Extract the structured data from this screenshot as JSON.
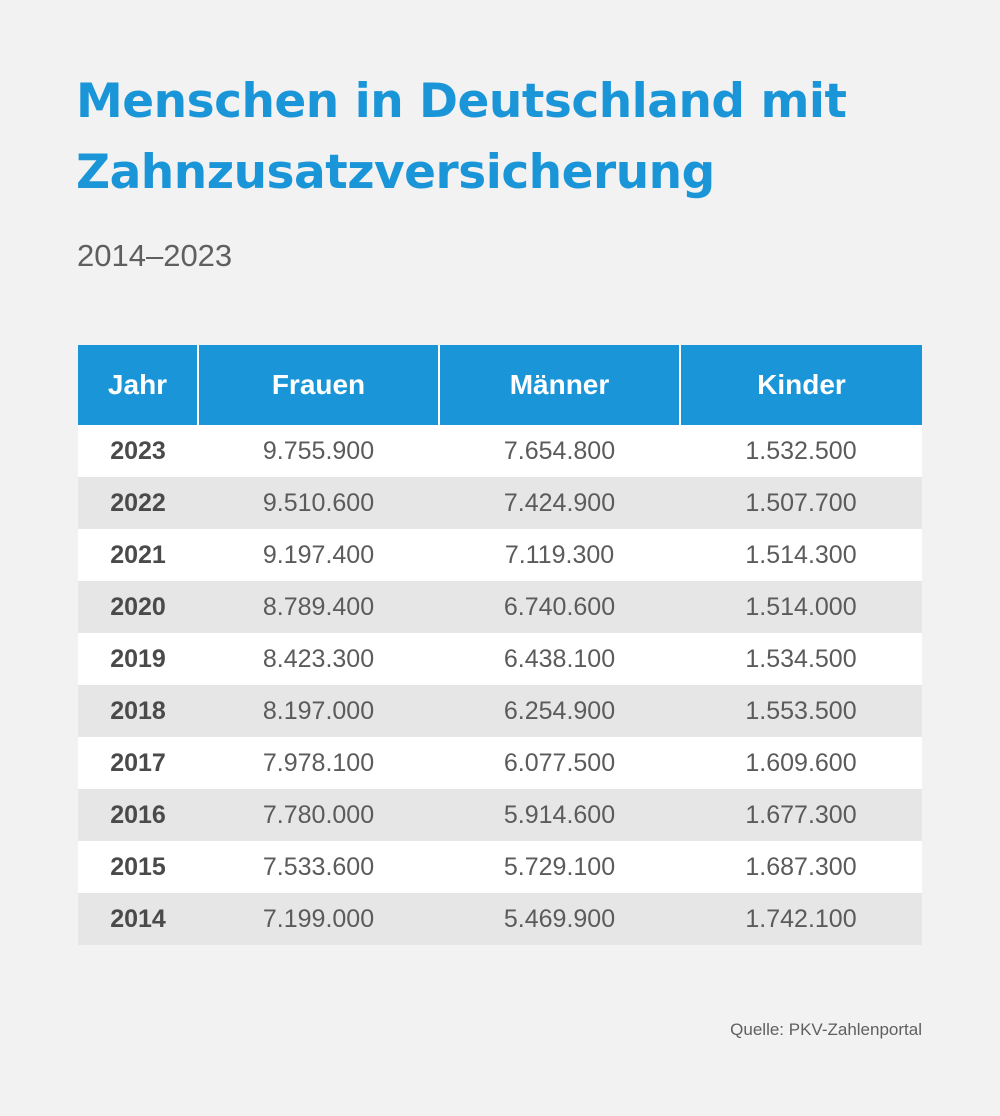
{
  "header": {
    "title_line1": "Menschen in Deutschland mit",
    "title_line2": "Zahnzusatzversicherung",
    "subtitle": "2014–2023"
  },
  "table": {
    "columns": [
      "Jahr",
      "Frauen",
      "Männer",
      "Kinder"
    ],
    "rows": [
      [
        "2023",
        "9.755.900",
        "7.654.800",
        "1.532.500"
      ],
      [
        "2022",
        "9.510.600",
        "7.424.900",
        "1.507.700"
      ],
      [
        "2021",
        "9.197.400",
        "7.119.300",
        "1.514.300"
      ],
      [
        "2020",
        "8.789.400",
        "6.740.600",
        "1.514.000"
      ],
      [
        "2019",
        "8.423.300",
        "6.438.100",
        "1.534.500"
      ],
      [
        "2018",
        "8.197.000",
        "6.254.900",
        "1.553.500"
      ],
      [
        "2017",
        "7.978.100",
        "6.077.500",
        "1.609.600"
      ],
      [
        "2016",
        "7.780.000",
        "5.914.600",
        "1.677.300"
      ],
      [
        "2015",
        "7.533.600",
        "5.729.100",
        "1.687.300"
      ],
      [
        "2014",
        "7.199.000",
        "5.469.900",
        "1.742.100"
      ]
    ]
  },
  "footer": {
    "source": "Quelle: PKV-Zahlenportal"
  },
  "colors": {
    "accent": "#1a96d8",
    "background": "#f2f2f2",
    "row_alt": "#e6e6e6",
    "text": "#5b5b5b"
  },
  "chart_data": {
    "type": "table",
    "title": "Menschen in Deutschland mit Zahnzusatzversicherung",
    "subtitle": "2014–2023",
    "columns": [
      "Jahr",
      "Frauen",
      "Männer",
      "Kinder"
    ],
    "categories": [
      "2023",
      "2022",
      "2021",
      "2020",
      "2019",
      "2018",
      "2017",
      "2016",
      "2015",
      "2014"
    ],
    "series": [
      {
        "name": "Frauen",
        "values": [
          9755900,
          9510600,
          9197400,
          8789400,
          8423300,
          8197000,
          7978100,
          7780000,
          7533600,
          7199000
        ]
      },
      {
        "name": "Männer",
        "values": [
          7654800,
          7424900,
          7119300,
          6740600,
          6438100,
          6254900,
          6077500,
          5914600,
          5729100,
          5469900
        ]
      },
      {
        "name": "Kinder",
        "values": [
          1532500,
          1507700,
          1514300,
          1514000,
          1534500,
          1553500,
          1609600,
          1677300,
          1687300,
          1742100
        ]
      }
    ],
    "source": "Quelle: PKV-Zahlenportal"
  }
}
